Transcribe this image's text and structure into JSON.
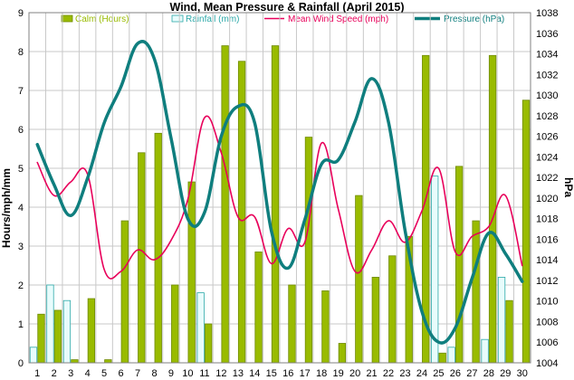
{
  "chart_data": {
    "type": "bar-line-combo",
    "title": "Wind, Mean Pressure & Rainfall (April 2015)",
    "ylabel_left": "Hours/mph/mm",
    "ylabel_right": "hPa",
    "ylim_left": [
      0,
      9
    ],
    "ylim_right": [
      1004,
      1038
    ],
    "left_ticks": [
      "0",
      "1",
      "2",
      "3",
      "4",
      "5",
      "6",
      "7",
      "8",
      "9"
    ],
    "right_ticks": [
      "1004",
      "1006",
      "1008",
      "1010",
      "1012",
      "1014",
      "1016",
      "1018",
      "1020",
      "1022",
      "1024",
      "1026",
      "1028",
      "1030",
      "1032",
      "1034",
      "1036",
      "1038"
    ],
    "categories": [
      "1",
      "2",
      "3",
      "4",
      "5",
      "6",
      "7",
      "8",
      "9",
      "10",
      "11",
      "12",
      "13",
      "14",
      "15",
      "16",
      "17",
      "18",
      "19",
      "20",
      "21",
      "22",
      "23",
      "24",
      "25",
      "26",
      "27",
      "28",
      "29",
      "30"
    ],
    "grid": true,
    "legend_position": "top",
    "series": [
      {
        "name": "Calm (Hours)",
        "kind": "bar",
        "axis": "left",
        "color": "#99BB00",
        "stroke": "#6F8A00",
        "values": [
          1.25,
          1.35,
          0.08,
          1.65,
          0.08,
          3.65,
          5.4,
          5.9,
          2.0,
          4.65,
          1.0,
          8.15,
          7.75,
          2.85,
          8.15,
          2.0,
          5.8,
          1.85,
          0.5,
          4.3,
          2.2,
          2.75,
          3.25,
          7.9,
          0.25,
          5.05,
          3.65,
          7.9,
          1.6,
          6.75
        ]
      },
      {
        "name": "Rainfall (mm)",
        "kind": "bar",
        "axis": "left",
        "color": "#E8FCFC",
        "stroke": "#2BA8A8",
        "values": [
          0.4,
          2.0,
          1.6,
          0.0,
          0.0,
          0.0,
          0.0,
          0.0,
          0.0,
          0.0,
          1.8,
          0.0,
          0.0,
          0.0,
          0.0,
          0.0,
          0.0,
          0.0,
          0.0,
          0.0,
          0.0,
          0.0,
          0.0,
          0.0,
          4.8,
          0.4,
          0.0,
          0.6,
          2.2,
          0.0
        ]
      },
      {
        "name": "Mean Wind Speed (mph)",
        "kind": "line",
        "axis": "left",
        "color": "#E8005A",
        "values": [
          5.15,
          4.3,
          4.65,
          4.85,
          2.4,
          2.35,
          2.9,
          2.65,
          3.15,
          4.2,
          6.3,
          5.4,
          3.75,
          3.75,
          2.55,
          3.45,
          3.1,
          5.65,
          3.95,
          2.35,
          2.9,
          3.65,
          3.1,
          3.9,
          5.0,
          2.85,
          3.25,
          3.5,
          4.3,
          2.5
        ]
      },
      {
        "name": "Pressure (hPa)",
        "kind": "line",
        "axis": "right",
        "color": "#0F7E7E",
        "values": [
          1025.2,
          1021.3,
          1018.3,
          1021.9,
          1027.3,
          1030.8,
          1035.0,
          1033.5,
          1025.8,
          1018.0,
          1018.6,
          1026.0,
          1028.9,
          1027.3,
          1016.8,
          1013.2,
          1017.9,
          1023.3,
          1023.7,
          1027.4,
          1031.6,
          1027.4,
          1016.8,
          1009.0,
          1006.0,
          1007.4,
          1012.2,
          1016.6,
          1014.6,
          1011.9
        ]
      }
    ]
  }
}
